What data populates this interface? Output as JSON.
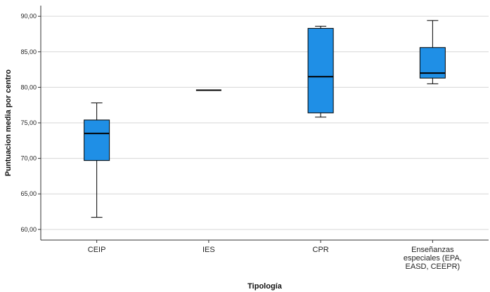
{
  "chart_data": {
    "type": "boxplot",
    "title": "",
    "xlabel": "Tipología",
    "ylabel": "Puntuacion media por centro",
    "ylim": [
      58.5,
      91.5
    ],
    "yticks": [
      "60,00",
      "65,00",
      "70,00",
      "75,00",
      "80,00",
      "85,00",
      "90,00"
    ],
    "grid": "horizontal",
    "box_color": "#1f8fe6",
    "categories": [
      {
        "label_lines": [
          "CEIP"
        ],
        "min": 61.7,
        "q1": 69.7,
        "median": 73.5,
        "q3": 75.4,
        "max": 77.8
      },
      {
        "label_lines": [
          "IES"
        ],
        "min": 79.6,
        "q1": 79.6,
        "median": 79.6,
        "q3": 79.6,
        "max": 79.6
      },
      {
        "label_lines": [
          "CPR"
        ],
        "min": 75.8,
        "q1": 76.4,
        "median": 81.5,
        "q3": 88.3,
        "max": 88.6
      },
      {
        "label_lines": [
          "Enseñanzas",
          "especiales (EPA,",
          "EASD, CEEPR)"
        ],
        "min": 80.5,
        "q1": 81.3,
        "median": 82.0,
        "q3": 85.6,
        "max": 89.4
      }
    ]
  }
}
